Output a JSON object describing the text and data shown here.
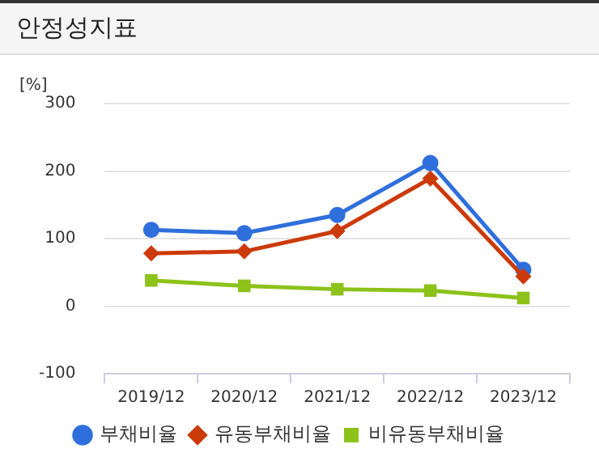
{
  "chart_data": {
    "type": "line",
    "title": "안정성지표",
    "ylabel": "[%]",
    "categories": [
      "2019/12",
      "2020/12",
      "2021/12",
      "2022/12",
      "2023/12"
    ],
    "series": [
      {
        "name": "부채비율",
        "color": "#2e6fdc",
        "marker": "circle",
        "values": [
          113,
          108,
          135,
          212,
          54
        ]
      },
      {
        "name": "유동부채비율",
        "color": "#cc3a0a",
        "marker": "diamond",
        "values": [
          78,
          81,
          111,
          189,
          44
        ]
      },
      {
        "name": "비유동부채비율",
        "color": "#8cc21a",
        "marker": "square",
        "values": [
          38,
          30,
          25,
          23,
          12
        ]
      }
    ],
    "ylim": [
      -100,
      300
    ],
    "yticks": [
      -100,
      0,
      100,
      200,
      300
    ],
    "grid": "y",
    "legend": "bottom"
  }
}
